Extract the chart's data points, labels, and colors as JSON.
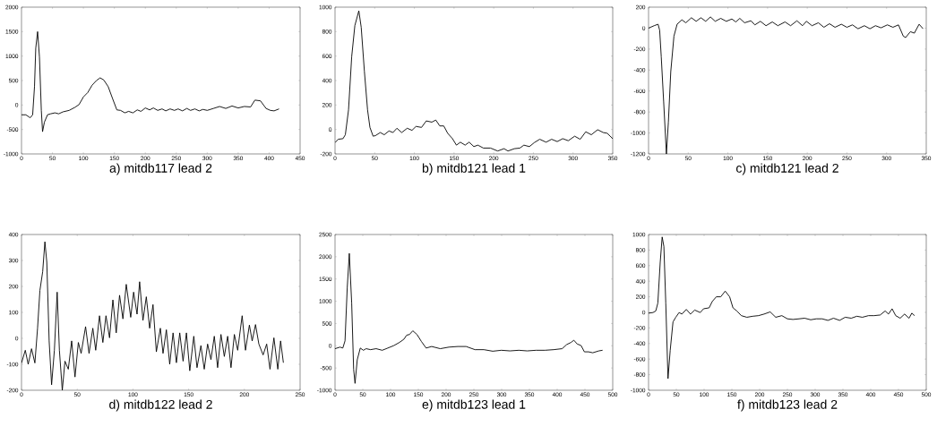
{
  "chart_data": [
    {
      "type": "line",
      "title": "a) mitdb117 lead 2",
      "color": "#000000",
      "xlim": [
        0,
        450
      ],
      "ylim": [
        -1000,
        2000
      ],
      "xticks": [
        0,
        50,
        100,
        150,
        200,
        250,
        300,
        350,
        400,
        450
      ],
      "yticks": [
        -1000,
        -500,
        0,
        500,
        1000,
        1500,
        2000
      ],
      "x": [
        0,
        7,
        14,
        18,
        21,
        23,
        26,
        29,
        32,
        34,
        37,
        42,
        47,
        54,
        60,
        67,
        77,
        86,
        93,
        100,
        107,
        114,
        121,
        127,
        133,
        140,
        147,
        154,
        160,
        167,
        173,
        180,
        187,
        193,
        200,
        207,
        213,
        220,
        227,
        233,
        240,
        247,
        253,
        260,
        267,
        273,
        280,
        287,
        293,
        300,
        310,
        320,
        330,
        340,
        350,
        360,
        370,
        377,
        386,
        395,
        402,
        408,
        416
      ],
      "values": [
        -200,
        -200,
        -260,
        -200,
        375,
        1160,
        1500,
        980,
        -110,
        -545,
        -350,
        -200,
        -180,
        -160,
        -180,
        -140,
        -110,
        -50,
        10,
        165,
        255,
        405,
        500,
        555,
        510,
        375,
        135,
        -100,
        -110,
        -160,
        -130,
        -160,
        -100,
        -130,
        -60,
        -100,
        -60,
        -110,
        -80,
        -120,
        -80,
        -110,
        -80,
        -120,
        -70,
        -110,
        -80,
        -120,
        -90,
        -110,
        -70,
        -30,
        -70,
        -20,
        -60,
        -30,
        -40,
        100,
        85,
        -70,
        -110,
        -120,
        -80
      ]
    },
    {
      "type": "line",
      "title": "b) mitdb121 lead 1",
      "color": "#000000",
      "xlim": [
        0,
        350
      ],
      "ylim": [
        -200,
        1000
      ],
      "xticks": [
        0,
        50,
        100,
        150,
        200,
        250,
        300,
        350
      ],
      "yticks": [
        -200,
        0,
        200,
        400,
        600,
        800,
        1000
      ],
      "x": [
        0,
        4,
        10,
        13,
        17,
        21,
        25,
        30,
        33,
        37,
        41,
        44,
        48,
        51,
        57,
        62,
        68,
        73,
        78,
        84,
        91,
        97,
        102,
        109,
        115,
        122,
        127,
        132,
        137,
        142,
        148,
        153,
        158,
        164,
        169,
        175,
        180,
        187,
        196,
        205,
        213,
        218,
        226,
        233,
        238,
        245,
        251,
        258,
        266,
        273,
        280,
        287,
        294,
        302,
        309,
        316,
        323,
        331,
        338,
        343,
        350
      ],
      "values": [
        -108,
        -80,
        -75,
        -43,
        160,
        595,
        850,
        970,
        835,
        475,
        160,
        17,
        -55,
        -50,
        -25,
        -43,
        -12,
        -25,
        10,
        -25,
        10,
        -7,
        25,
        17,
        70,
        60,
        77,
        29,
        29,
        -31,
        -75,
        -128,
        -104,
        -128,
        -104,
        -140,
        -128,
        -152,
        -152,
        -176,
        -157,
        -176,
        -157,
        -152,
        -128,
        -140,
        -108,
        -80,
        -104,
        -80,
        -99,
        -75,
        -92,
        -55,
        -80,
        -19,
        -43,
        -2,
        -25,
        -31,
        -75
      ]
    },
    {
      "type": "line",
      "title": "c) mitdb121 lead 2",
      "color": "#000000",
      "xlim": [
        0,
        350
      ],
      "ylim": [
        -1200,
        200
      ],
      "xticks": [
        0,
        50,
        100,
        150,
        200,
        250,
        300,
        350
      ],
      "yticks": [
        -1200,
        -1000,
        -800,
        -600,
        -400,
        -200,
        0,
        200
      ],
      "x": [
        0,
        7,
        12,
        14,
        16,
        19,
        22.5,
        25,
        28,
        32,
        36,
        42,
        47,
        54,
        60,
        66,
        72,
        78,
        84,
        91,
        98,
        105,
        110,
        115,
        121,
        129,
        134,
        141,
        148,
        156,
        163,
        172,
        179,
        187,
        194,
        199,
        206,
        214,
        221,
        228,
        235,
        243,
        250,
        257,
        264,
        272,
        279,
        286,
        293,
        301,
        308,
        315,
        321,
        324,
        330,
        335,
        341,
        346
      ],
      "values": [
        0,
        23,
        37,
        -20,
        -274,
        -697,
        -1200,
        -895,
        -415,
        -76,
        37,
        79,
        51,
        99,
        65,
        99,
        65,
        107,
        65,
        93,
        65,
        87,
        59,
        93,
        51,
        70,
        31,
        65,
        23,
        59,
        23,
        59,
        23,
        70,
        23,
        65,
        23,
        51,
        8,
        42,
        8,
        37,
        8,
        31,
        -6,
        23,
        -6,
        23,
        3,
        31,
        8,
        31,
        -76,
        -90,
        -34,
        -48,
        37,
        -6
      ]
    },
    {
      "type": "line",
      "title": "d) mitdb122 lead 2",
      "color": "#000000",
      "xlim": [
        0,
        250
      ],
      "ylim": [
        -200,
        400
      ],
      "xticks": [
        0,
        50,
        100,
        150,
        200,
        250
      ],
      "yticks": [
        -200,
        -100,
        0,
        100,
        200,
        300,
        400
      ],
      "x": [
        0,
        3.4,
        6,
        9,
        12,
        14.4,
        16.5,
        19,
        21,
        22.7,
        24.8,
        27,
        29.5,
        32,
        34,
        36.6,
        39,
        42,
        45,
        48,
        51,
        53.5,
        57.5,
        60.6,
        64,
        66.6,
        70,
        73,
        75.8,
        79,
        82,
        85,
        88,
        91,
        94,
        98,
        100.6,
        103.7,
        106,
        109,
        112,
        115,
        118,
        121,
        124.6,
        127,
        130,
        133,
        136,
        139,
        142,
        145,
        148,
        151,
        154.6,
        157.5,
        161,
        164,
        167,
        170,
        173,
        176,
        179,
        182,
        185,
        188,
        191,
        194,
        198,
        201,
        204.5,
        207,
        210,
        213,
        216.8,
        220,
        223,
        226.5,
        230,
        232.5,
        235
      ],
      "values": [
        -95,
        -46,
        -100,
        -40,
        -95,
        39,
        184,
        257,
        372,
        293,
        -10,
        -179,
        -46,
        178,
        -46,
        -200,
        -88,
        -119,
        -10,
        -149,
        -16,
        -58,
        45,
        -58,
        39,
        -46,
        87,
        -16,
        87,
        2,
        148,
        21,
        166,
        75,
        208,
        81,
        178,
        93,
        218,
        69,
        160,
        39,
        130,
        -52,
        39,
        -58,
        33,
        -100,
        21,
        -94,
        21,
        -88,
        21,
        -125,
        8,
        -113,
        -28,
        -119,
        -22,
        -82,
        8,
        -113,
        15,
        -70,
        8,
        -113,
        15,
        -46,
        87,
        -46,
        51,
        -10,
        53,
        -22,
        -64,
        -22,
        -119,
        2,
        -119,
        -10,
        -94
      ]
    },
    {
      "type": "line",
      "title": "e) mitdb123 lead 1",
      "color": "#000000",
      "xlim": [
        0,
        500
      ],
      "ylim": [
        -1000,
        2500
      ],
      "xticks": [
        0,
        50,
        100,
        150,
        200,
        250,
        300,
        350,
        400,
        450,
        500
      ],
      "yticks": [
        -1000,
        -500,
        0,
        500,
        1000,
        1500,
        2000,
        2500
      ],
      "x": [
        0,
        9,
        14,
        18,
        22,
        25.7,
        30,
        33.5,
        36,
        40,
        45.5,
        51,
        56,
        64,
        74,
        85,
        95,
        106,
        116,
        124,
        129,
        134,
        140,
        147.6,
        155.5,
        164,
        174,
        189.5,
        205,
        221,
        236,
        252,
        268,
        284,
        299.5,
        315,
        331,
        346,
        362,
        378,
        393.7,
        409,
        417,
        425,
        430,
        436,
        443,
        449,
        456.5,
        464,
        475,
        481.7
      ],
      "values": [
        -66,
        -31,
        -52,
        110,
        1311,
        2075,
        957,
        -528,
        -846,
        -316,
        -52,
        -102,
        -66,
        -88,
        -66,
        -102,
        -52,
        4,
        75,
        146,
        238,
        252,
        336,
        252,
        96,
        -52,
        -17,
        -66,
        -31,
        -17,
        -17,
        -88,
        -88,
        -123,
        -102,
        -116,
        -102,
        -116,
        -102,
        -102,
        -88,
        -66,
        25,
        75,
        124,
        40,
        4,
        -137,
        -137,
        -158,
        -116,
        -102
      ]
    },
    {
      "type": "line",
      "title": "f) mitdb123 lead 2",
      "color": "#000000",
      "xlim": [
        0,
        500
      ],
      "ylim": [
        -1000,
        1000
      ],
      "xticks": [
        0,
        50,
        100,
        150,
        200,
        250,
        300,
        350,
        400,
        450,
        500
      ],
      "yticks": [
        -1000,
        -800,
        -600,
        -400,
        -200,
        0,
        200,
        400,
        600,
        800,
        1000
      ],
      "x": [
        0,
        8,
        13,
        16.7,
        21,
        24.5,
        27.6,
        31,
        35,
        39,
        44,
        49,
        55,
        60,
        68,
        75.5,
        83,
        93,
        99,
        109,
        114.6,
        122,
        130,
        138,
        146,
        152,
        159,
        167,
        177,
        187.5,
        198,
        208,
        219,
        229,
        240,
        250,
        260,
        271,
        281,
        292,
        302,
        312.5,
        323,
        333,
        344,
        354,
        365,
        375,
        385,
        396,
        406,
        417,
        426,
        432,
        438.5,
        445,
        453,
        461,
        469,
        474,
        479
      ],
      "values": [
        -10,
        -2,
        18,
        119,
        644,
        968,
        846,
        119,
        -851,
        -487,
        -123,
        -63,
        -2,
        -22,
        38,
        -22,
        30,
        -2,
        46,
        58,
        139,
        200,
        200,
        273,
        200,
        58,
        18,
        -42,
        -63,
        -50,
        -42,
        -22,
        6,
        -63,
        -42,
        -83,
        -91,
        -83,
        -75,
        -95,
        -83,
        -83,
        -103,
        -75,
        -103,
        -63,
        -75,
        -50,
        -63,
        -42,
        -42,
        -34,
        18,
        -22,
        46,
        -42,
        -75,
        -22,
        -75,
        -10,
        -42
      ]
    }
  ]
}
